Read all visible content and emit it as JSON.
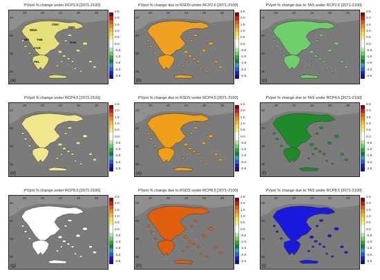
{
  "panels": [
    {
      "title": "PVpot % change under RCP2.6 [2071-2100]",
      "label": "(a)",
      "fill": "#e6e07a",
      "regions": [
        "CMA",
        "EMA",
        "WMA",
        "EPI",
        "THE",
        "NAE",
        "CGR",
        "PEL"
      ]
    },
    {
      "title": "PVpot % change due to RSDS under RCP2.6 [2071-2100]",
      "label": "(b)",
      "fill": "#f0a020"
    },
    {
      "title": "PVpot % change due to TAS under RCP2.6 [2071-2100]",
      "label": "(c)",
      "fill": "#6fcf6a"
    },
    {
      "title": "PVpot % change under RCP4.5 [2071-2100]",
      "label": "(d)",
      "fill": "#f0e68c"
    },
    {
      "title": "PVpot % change due to RSDS under RCP4.5 [2071-2100]",
      "label": "(e)",
      "fill": "#f0a018"
    },
    {
      "title": "PVpot % change due to TAS under RCP4.5 [2071-2100]",
      "label": "(f)",
      "fill": "#1f8a2a"
    },
    {
      "title": "PVpot % change under RCP8.5 [2071-2100]",
      "label": "(g)",
      "fill": "#ffffff"
    },
    {
      "title": "PVpot % change due to RSDS under RCP8.5 [2071-2100]",
      "label": "(h)",
      "fill": "#e06010"
    },
    {
      "title": "PVpot % change due to TAS under RCP8.5 [2071-2100]",
      "label": "(i)",
      "fill": "#1a1adf"
    }
  ],
  "x_ticks": [
    "20",
    "22",
    "24",
    "26",
    "28"
  ],
  "y_ticks": [
    "42",
    "40",
    "38",
    "36"
  ],
  "colorbar": {
    "ticks": [
      "2.5",
      "2.0",
      "1.5",
      "1.0",
      "0.5",
      "0.0",
      "-0.5",
      "-1.0",
      "-1.5",
      "-2.0",
      "-2.5"
    ],
    "colors": [
      "#8b0000",
      "#c81e1e",
      "#e85a10",
      "#f08a1e",
      "#f5b830",
      "#f5dc50",
      "#f0f07a",
      "#ffffff",
      "#ffffff",
      "#b8e6a0",
      "#6fcf6a",
      "#2aa83a",
      "#1f7a3a",
      "#2aa0c8",
      "#2a5adf",
      "#1a1adf",
      "#1a0a8a"
    ]
  }
}
